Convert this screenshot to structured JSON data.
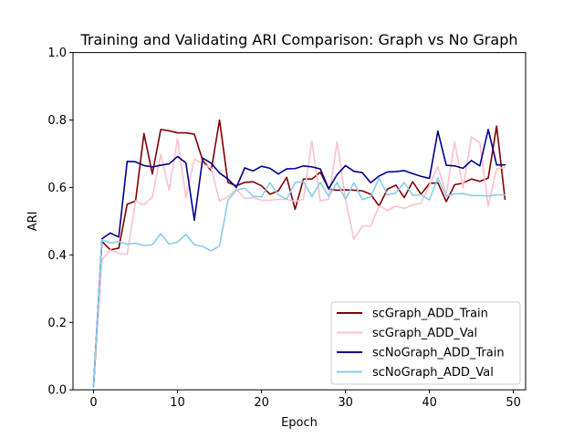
{
  "chart_data": {
    "type": "line",
    "title": "Training and Validating ARI Comparison: Graph vs No Graph",
    "xlabel": "Epoch",
    "ylabel": "ARI",
    "xlim": [
      -2.45,
      51.45
    ],
    "ylim": [
      0.0,
      1.0
    ],
    "xticks": [
      0,
      10,
      20,
      30,
      40,
      50
    ],
    "yticks": [
      0.0,
      0.2,
      0.4,
      0.6,
      0.8,
      1.0
    ],
    "ytick_labels": [
      "0.0",
      "0.2",
      "0.4",
      "0.6",
      "0.8",
      "1.0"
    ],
    "grid": false,
    "legend_position": "lower-right",
    "x": [
      0,
      1,
      2,
      3,
      4,
      5,
      6,
      7,
      8,
      9,
      10,
      11,
      12,
      13,
      14,
      15,
      16,
      17,
      18,
      19,
      20,
      21,
      22,
      23,
      24,
      25,
      26,
      27,
      28,
      29,
      30,
      31,
      32,
      33,
      34,
      35,
      36,
      37,
      38,
      39,
      40,
      41,
      42,
      43,
      44,
      45,
      46,
      47,
      48,
      49
    ],
    "series": [
      {
        "name": "scGraph_ADD_Train",
        "color": "#800000",
        "values": [
          0.01,
          0.44,
          0.415,
          0.42,
          0.55,
          0.56,
          0.76,
          0.64,
          0.772,
          0.768,
          0.762,
          0.762,
          0.758,
          0.68,
          0.65,
          0.8,
          0.615,
          0.605,
          0.615,
          0.617,
          0.605,
          0.58,
          0.59,
          0.63,
          0.535,
          0.625,
          0.625,
          0.645,
          0.595,
          0.592,
          0.593,
          0.592,
          0.59,
          0.58,
          0.545,
          0.595,
          0.607,
          0.57,
          0.617,
          0.58,
          0.612,
          0.614,
          0.558,
          0.608,
          0.613,
          0.625,
          0.618,
          0.628,
          0.782,
          0.565
        ]
      },
      {
        "name": "scGraph_ADD_Val",
        "color": "#ffc0cb",
        "values": [
          0.01,
          0.385,
          0.415,
          0.405,
          0.402,
          0.56,
          0.548,
          0.572,
          0.697,
          0.592,
          0.745,
          0.57,
          0.685,
          0.67,
          0.657,
          0.56,
          0.572,
          0.595,
          0.567,
          0.57,
          0.562,
          0.562,
          0.565,
          0.565,
          0.558,
          0.565,
          0.738,
          0.56,
          0.565,
          0.735,
          0.565,
          0.447,
          0.485,
          0.485,
          0.545,
          0.532,
          0.545,
          0.538,
          0.548,
          0.553,
          0.607,
          0.662,
          0.58,
          0.735,
          0.598,
          0.75,
          0.732,
          0.545,
          0.655,
          0.66
        ]
      },
      {
        "name": "scNoGraph_ADD_Train",
        "color": "#00008b",
        "values": [
          0.01,
          0.448,
          0.465,
          0.453,
          0.677,
          0.676,
          0.665,
          0.661,
          0.666,
          0.67,
          0.692,
          0.673,
          0.503,
          0.687,
          0.672,
          0.643,
          0.625,
          0.6,
          0.658,
          0.649,
          0.663,
          0.657,
          0.64,
          0.655,
          0.656,
          0.664,
          0.661,
          0.655,
          0.596,
          0.638,
          0.665,
          0.648,
          0.644,
          0.614,
          0.634,
          0.646,
          0.647,
          0.65,
          0.641,
          0.633,
          0.627,
          0.767,
          0.666,
          0.664,
          0.657,
          0.68,
          0.664,
          0.772,
          0.667,
          0.667
        ]
      },
      {
        "name": "scNoGraph_ADD_Val",
        "color": "#87ceeb",
        "values": [
          0.01,
          0.445,
          0.435,
          0.44,
          0.432,
          0.435,
          0.428,
          0.43,
          0.463,
          0.432,
          0.438,
          0.461,
          0.43,
          0.425,
          0.412,
          0.427,
          0.562,
          0.592,
          0.598,
          0.574,
          0.572,
          0.614,
          0.578,
          0.565,
          0.615,
          0.617,
          0.573,
          0.615,
          0.574,
          0.615,
          0.565,
          0.614,
          0.564,
          0.572,
          0.628,
          0.578,
          0.584,
          0.615,
          0.577,
          0.578,
          0.563,
          0.628,
          0.575,
          0.581,
          0.582,
          0.576,
          0.576,
          0.575,
          0.578,
          0.578
        ]
      }
    ]
  }
}
